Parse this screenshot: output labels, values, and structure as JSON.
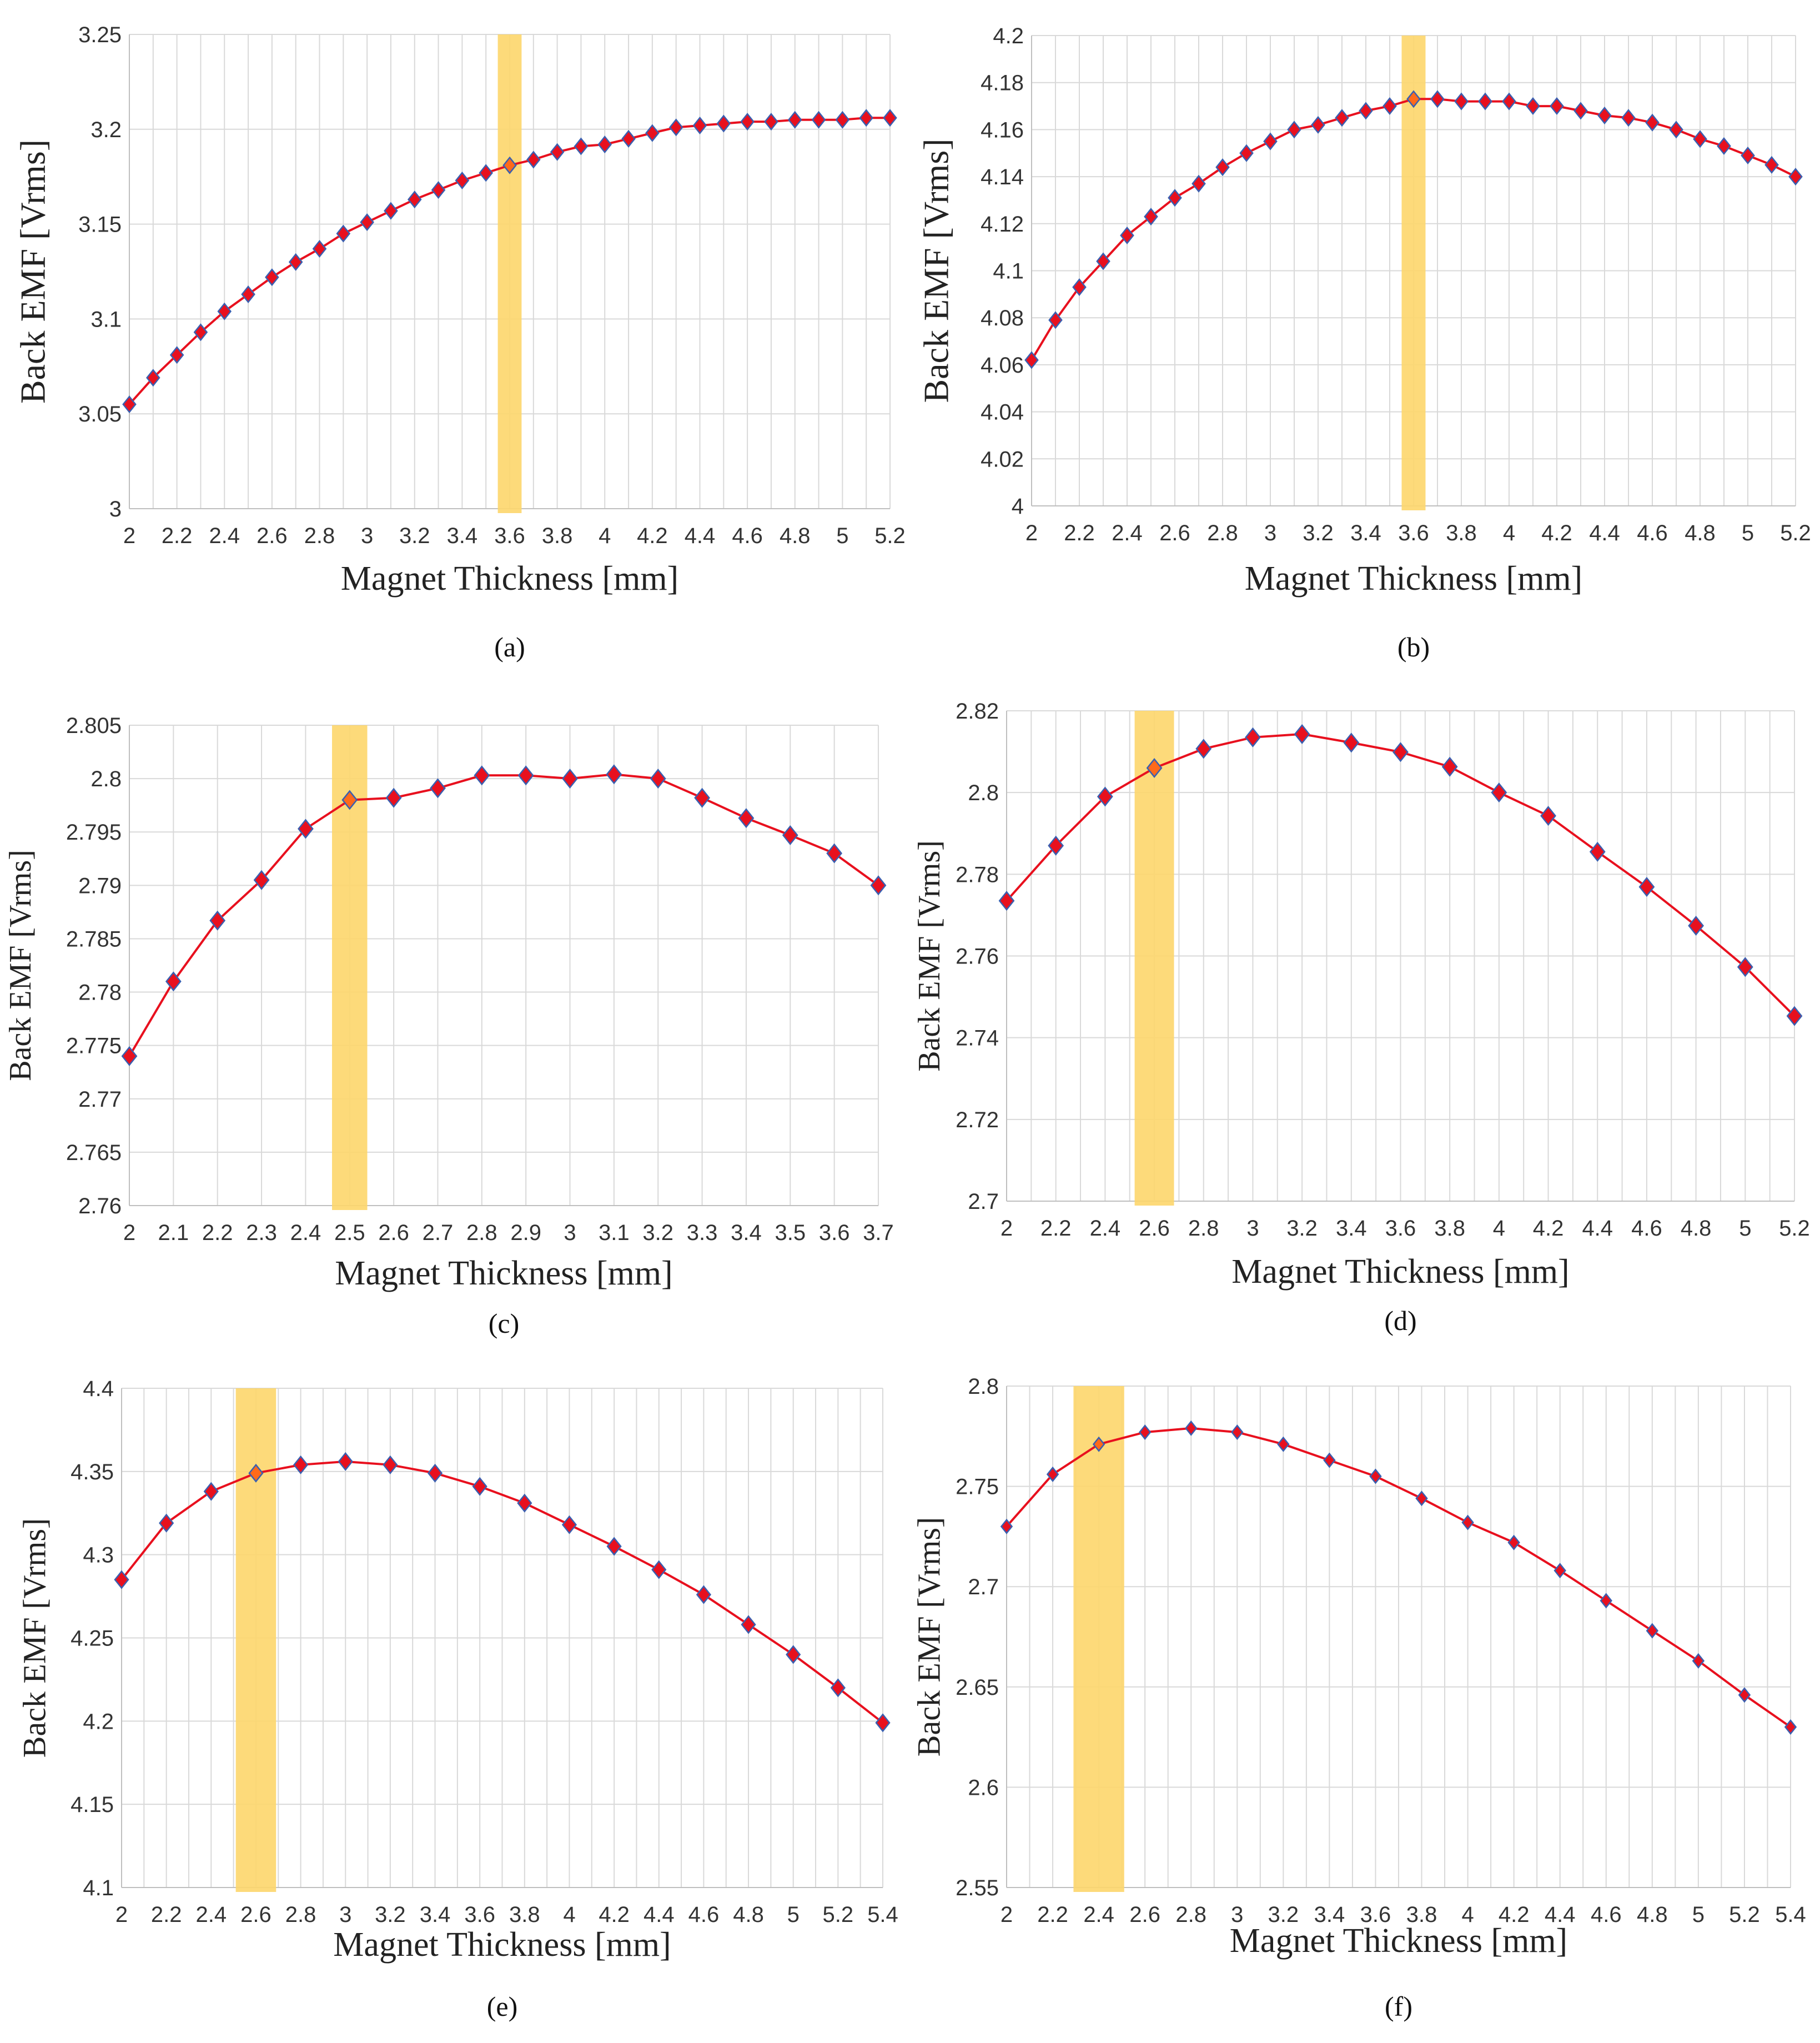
{
  "colors": {
    "line": "#e8101e",
    "marker_fill": "#e8101e",
    "marker_stroke": "#3a5fb0",
    "highlight_marker": "#ff6a1a",
    "highlight_band": "#fdd66b",
    "grid": "#d9d9d9"
  },
  "chart_data": [
    {
      "type": "line",
      "caption": "(a)",
      "xlabel": "Magnet Thickness [mm]",
      "ylabel": "Back EMF [Vrms]",
      "xlim": [
        2,
        5.2
      ],
      "ylim": [
        3,
        3.25
      ],
      "x_ticks": [
        2,
        2.2,
        2.4,
        2.6,
        2.8,
        3,
        3.2,
        3.4,
        3.6,
        3.8,
        4,
        4.2,
        4.4,
        4.6,
        4.8,
        5,
        5.2
      ],
      "x_tick_labels": [
        "2",
        "2.2",
        "2.4",
        "2.6",
        "2.8",
        "3",
        "3.2",
        "3.4",
        "3.6",
        "3.8",
        "4",
        "4.2",
        "4.4",
        "4.6",
        "4.8",
        "5",
        "5.2"
      ],
      "y_ticks": [
        3,
        3.05,
        3.1,
        3.15,
        3.2,
        3.25
      ],
      "y_tick_labels": [
        "3",
        "3.05",
        "3.1",
        "3.15",
        "3.2",
        "3.25"
      ],
      "highlight_range": [
        3.55,
        3.65
      ],
      "highlight_x": 3.6,
      "series": [
        {
          "name": "Back EMF",
          "x": [
            2,
            2.1,
            2.2,
            2.3,
            2.4,
            2.5,
            2.6,
            2.7,
            2.8,
            2.9,
            3,
            3.1,
            3.2,
            3.3,
            3.4,
            3.5,
            3.6,
            3.7,
            3.8,
            3.9,
            4,
            4.1,
            4.2,
            4.3,
            4.4,
            4.5,
            4.6,
            4.7,
            4.8,
            4.9,
            5,
            5.1,
            5.2
          ],
          "y": [
            3.055,
            3.069,
            3.081,
            3.093,
            3.104,
            3.113,
            3.122,
            3.13,
            3.137,
            3.145,
            3.151,
            3.157,
            3.163,
            3.168,
            3.173,
            3.177,
            3.181,
            3.184,
            3.188,
            3.191,
            3.192,
            3.195,
            3.198,
            3.201,
            3.202,
            3.203,
            3.204,
            3.204,
            3.205,
            3.205,
            3.205,
            3.206,
            3.206
          ]
        }
      ]
    },
    {
      "type": "line",
      "caption": "(b)",
      "xlabel": "Magnet Thickness [mm]",
      "ylabel": "Back EMF [Vrms]",
      "xlim": [
        2,
        5.2
      ],
      "ylim": [
        4,
        4.2
      ],
      "x_ticks": [
        2,
        2.2,
        2.4,
        2.6,
        2.8,
        3,
        3.2,
        3.4,
        3.6,
        3.8,
        4,
        4.2,
        4.4,
        4.6,
        4.8,
        5,
        5.2
      ],
      "x_tick_labels": [
        "2",
        "2.2",
        "2.4",
        "2.6",
        "2.8",
        "3",
        "3.2",
        "3.4",
        "3.6",
        "3.8",
        "4",
        "4.2",
        "4.4",
        "4.6",
        "4.8",
        "5",
        "5.2"
      ],
      "y_ticks": [
        4,
        4.02,
        4.04,
        4.06,
        4.08,
        4.1,
        4.12,
        4.14,
        4.16,
        4.18,
        4.2
      ],
      "y_tick_labels": [
        "4",
        "4.02",
        "4.04",
        "4.06",
        "4.08",
        "4.1",
        "4.12",
        "4.14",
        "4.16",
        "4.18",
        "4.2"
      ],
      "highlight_range": [
        3.55,
        3.65
      ],
      "highlight_x": 3.6,
      "series": [
        {
          "name": "Back EMF",
          "x": [
            2,
            2.1,
            2.2,
            2.3,
            2.4,
            2.5,
            2.6,
            2.7,
            2.8,
            2.9,
            3,
            3.1,
            3.2,
            3.3,
            3.4,
            3.5,
            3.6,
            3.7,
            3.8,
            3.9,
            4,
            4.1,
            4.2,
            4.3,
            4.4,
            4.5,
            4.6,
            4.7,
            4.8,
            4.9,
            5,
            5.1,
            5.2
          ],
          "y": [
            4.062,
            4.079,
            4.093,
            4.104,
            4.115,
            4.123,
            4.131,
            4.137,
            4.144,
            4.15,
            4.155,
            4.16,
            4.162,
            4.165,
            4.168,
            4.17,
            4.173,
            4.173,
            4.172,
            4.172,
            4.172,
            4.17,
            4.17,
            4.168,
            4.166,
            4.165,
            4.163,
            4.16,
            4.156,
            4.153,
            4.149,
            4.145,
            4.14
          ]
        }
      ]
    },
    {
      "type": "line",
      "caption": "(c)",
      "xlabel": "Magnet Thickness [mm]",
      "ylabel": "Back EMF [Vrms]",
      "xlim": [
        2,
        3.7
      ],
      "ylim": [
        2.76,
        2.805
      ],
      "x_ticks": [
        2,
        2.1,
        2.2,
        2.3,
        2.4,
        2.5,
        2.6,
        2.7,
        2.8,
        2.9,
        3,
        3.1,
        3.2,
        3.3,
        3.4,
        3.5,
        3.6,
        3.7
      ],
      "x_tick_labels": [
        "2",
        "2.1",
        "2.2",
        "2.3",
        "2.4",
        "2.5",
        "2.6",
        "2.7",
        "2.8",
        "2.9",
        "3",
        "3.1",
        "3.2",
        "3.3",
        "3.4",
        "3.5",
        "3.6",
        "3.7"
      ],
      "y_ticks": [
        2.76,
        2.765,
        2.77,
        2.775,
        2.78,
        2.785,
        2.79,
        2.795,
        2.8,
        2.805
      ],
      "y_tick_labels": [
        "2.76",
        "2.765",
        "2.77",
        "2.775",
        "2.78",
        "2.785",
        "2.79",
        "2.795",
        "2.8",
        "2.805"
      ],
      "highlight_range": [
        2.46,
        2.54
      ],
      "highlight_x": 2.5,
      "series": [
        {
          "name": "Back EMF",
          "x": [
            2,
            2.1,
            2.2,
            2.3,
            2.4,
            2.5,
            2.6,
            2.7,
            2.8,
            2.9,
            3,
            3.1,
            3.2,
            3.3,
            3.4,
            3.5,
            3.6,
            3.7
          ],
          "y": [
            2.774,
            2.781,
            2.7867,
            2.7905,
            2.7953,
            2.798,
            2.7982,
            2.7991,
            2.8003,
            2.8003,
            2.8,
            2.8004,
            2.8,
            2.7982,
            2.7963,
            2.7947,
            2.793,
            2.79
          ]
        }
      ]
    },
    {
      "type": "line",
      "caption": "(d)",
      "xlabel": "Magnet Thickness [mm]",
      "ylabel": "Back EMF [Vrms]",
      "xlim": [
        2,
        5.2
      ],
      "ylim": [
        2.7,
        2.82
      ],
      "x_ticks": [
        2,
        2.2,
        2.4,
        2.6,
        2.8,
        3,
        3.2,
        3.4,
        3.6,
        3.8,
        4,
        4.2,
        4.4,
        4.6,
        4.8,
        5,
        5.2
      ],
      "x_tick_labels": [
        "2",
        "2.2",
        "2.4",
        "2.6",
        "2.8",
        "3",
        "3.2",
        "3.4",
        "3.6",
        "3.8",
        "4",
        "4.2",
        "4.4",
        "4.6",
        "4.8",
        "5",
        "5.2"
      ],
      "y_ticks": [
        2.7,
        2.72,
        2.74,
        2.76,
        2.78,
        2.8,
        2.82
      ],
      "y_tick_labels": [
        "2.7",
        "2.72",
        "2.74",
        "2.76",
        "2.78",
        "2.8",
        "2.82"
      ],
      "highlight_range": [
        2.52,
        2.68
      ],
      "highlight_x": 2.6,
      "series": [
        {
          "name": "Back EMF",
          "x": [
            2,
            2.2,
            2.4,
            2.6,
            2.8,
            3,
            3.2,
            3.4,
            3.6,
            3.8,
            4,
            4.2,
            4.4,
            4.6,
            4.8,
            5,
            5.2
          ],
          "y": [
            2.7735,
            2.787,
            2.799,
            2.806,
            2.8107,
            2.8135,
            2.8143,
            2.8122,
            2.8099,
            2.8063,
            2.8,
            2.7943,
            2.7855,
            2.7769,
            2.7674,
            2.7573,
            2.7453
          ]
        }
      ]
    },
    {
      "type": "line",
      "caption": "(e)",
      "xlabel": "Magnet Thickness [mm]",
      "ylabel": "Back EMF [Vrms]",
      "xlim": [
        2,
        5.4
      ],
      "ylim": [
        4.1,
        4.4
      ],
      "x_ticks": [
        2,
        2.2,
        2.4,
        2.6,
        2.8,
        3,
        3.2,
        3.4,
        3.6,
        3.8,
        4,
        4.2,
        4.4,
        4.6,
        4.8,
        5,
        5.2,
        5.4
      ],
      "x_tick_labels": [
        "2",
        "2.2",
        "2.4",
        "2.6",
        "2.8",
        "3",
        "3.2",
        "3.4",
        "3.6",
        "3.8",
        "4",
        "4.2",
        "4.4",
        "4.6",
        "4.8",
        "5",
        "5.2",
        "5.4"
      ],
      "y_ticks": [
        4.1,
        4.15,
        4.2,
        4.25,
        4.3,
        4.35,
        4.4
      ],
      "y_tick_labels": [
        "4.1",
        "4.15",
        "4.2",
        "4.25",
        "4.3",
        "4.35",
        "4.4"
      ],
      "highlight_range": [
        2.51,
        2.69
      ],
      "highlight_x": 2.6,
      "series": [
        {
          "name": "Back EMF",
          "x": [
            2,
            2.2,
            2.4,
            2.6,
            2.8,
            3,
            3.2,
            3.4,
            3.6,
            3.8,
            4,
            4.2,
            4.4,
            4.6,
            4.8,
            5,
            5.2,
            5.4
          ],
          "y": [
            4.285,
            4.319,
            4.338,
            4.349,
            4.354,
            4.356,
            4.354,
            4.349,
            4.341,
            4.331,
            4.318,
            4.305,
            4.291,
            4.276,
            4.258,
            4.24,
            4.22,
            4.199
          ]
        }
      ]
    },
    {
      "type": "line",
      "caption": "(f)",
      "xlabel": "Magnet Thickness [mm]",
      "ylabel": "Back EMF [Vrms]",
      "xlim": [
        2,
        5.4
      ],
      "ylim": [
        2.55,
        2.8
      ],
      "x_ticks": [
        2,
        2.2,
        2.4,
        2.6,
        2.8,
        3,
        3.2,
        3.4,
        3.6,
        3.8,
        4,
        4.2,
        4.4,
        4.6,
        4.8,
        5,
        5.2,
        5.4
      ],
      "x_tick_labels": [
        "2",
        "2.2",
        "2.4",
        "2.6",
        "2.8",
        "3",
        "3.2",
        "3.4",
        "3.6",
        "3.8",
        "4",
        "4.2",
        "4.4",
        "4.6",
        "4.8",
        "5",
        "5.2",
        "5.4"
      ],
      "y_ticks": [
        2.55,
        2.6,
        2.65,
        2.7,
        2.75,
        2.8
      ],
      "y_tick_labels": [
        "2.55",
        "2.6",
        "2.65",
        "2.7",
        "2.75",
        "2.8"
      ],
      "highlight_range": [
        2.29,
        2.51
      ],
      "highlight_x": 2.4,
      "series": [
        {
          "name": "Back EMF",
          "x": [
            2,
            2.2,
            2.4,
            2.6,
            2.8,
            3,
            3.2,
            3.4,
            3.6,
            3.8,
            4,
            4.2,
            4.4,
            4.6,
            4.8,
            5,
            5.2,
            5.4
          ],
          "y": [
            2.73,
            2.756,
            2.771,
            2.777,
            2.779,
            2.777,
            2.771,
            2.763,
            2.755,
            2.744,
            2.732,
            2.722,
            2.708,
            2.693,
            2.678,
            2.663,
            2.646,
            2.63
          ]
        }
      ]
    }
  ]
}
